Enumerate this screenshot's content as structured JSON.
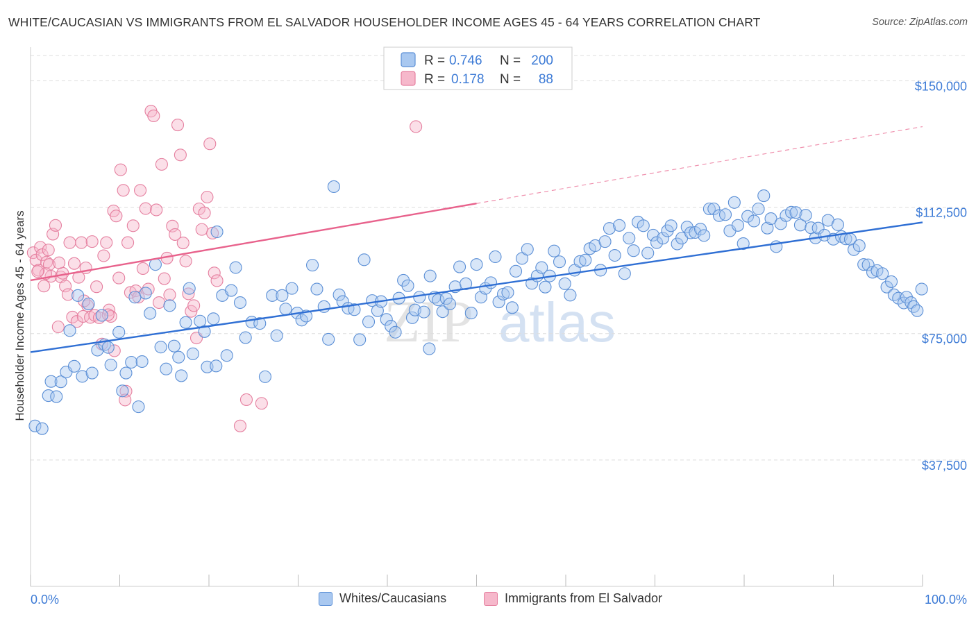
{
  "title": "WHITE/CAUCASIAN VS IMMIGRANTS FROM EL SALVADOR HOUSEHOLDER INCOME AGES 45 - 64 YEARS CORRELATION CHART",
  "source": "Source: ZipAtlas.com",
  "watermark": {
    "zip": "ZIP",
    "atlas": "atlas"
  },
  "colors": {
    "blue_fill": "#a9c8f0",
    "blue_stroke": "#5b8fd6",
    "blue_line": "#2f6fd4",
    "pink_fill": "#f6b8cb",
    "pink_stroke": "#e57f9f",
    "pink_line": "#e8628c",
    "tick_text": "#3d7bd6",
    "grid": "#dddddd"
  },
  "legend": {
    "rows": [
      {
        "r_label": "R =",
        "r_value": "0.746",
        "n_label": "N =",
        "n_value": "200"
      },
      {
        "r_label": "R =",
        "r_value": "0.178",
        "n_label": "N =",
        "n_value": "88"
      }
    ]
  },
  "bottom_legend": [
    "Whites/Caucasians",
    "Immigrants from El Salvador"
  ],
  "chart_data": {
    "type": "scatter",
    "title": "WHITE/CAUCASIAN VS IMMIGRANTS FROM EL SALVADOR HOUSEHOLDER INCOME AGES 45 - 64 YEARS CORRELATION CHART",
    "xlabel": "",
    "ylabel": "Householder Income Ages 45 - 64 years",
    "xlim": [
      0,
      100
    ],
    "ylim": [
      0,
      157500
    ],
    "x_tick_labels": [
      "0.0%",
      "100.0%"
    ],
    "y_ticks": [
      37500,
      75000,
      112500,
      150000
    ],
    "y_tick_labels": [
      "$37,500",
      "$75,000",
      "$112,500",
      "$150,000"
    ],
    "grid": "horizontal dashed",
    "series": [
      {
        "name": "Whites/Caucasians",
        "color": "#a9c8f0",
        "r": 0.746,
        "n": 200,
        "trend": {
          "x": [
            0,
            100
          ],
          "y": [
            69500,
            108000
          ]
        },
        "points": [
          [
            0.5,
            47600
          ],
          [
            1.3,
            46800
          ],
          [
            2.0,
            56600
          ],
          [
            2.3,
            60800
          ],
          [
            2.9,
            56300
          ],
          [
            3.4,
            60700
          ],
          [
            4.0,
            63600
          ],
          [
            4.4,
            75900
          ],
          [
            4.9,
            65300
          ],
          [
            5.3,
            86300
          ],
          [
            5.8,
            62300
          ],
          [
            6.5,
            83800
          ],
          [
            6.9,
            63300
          ],
          [
            7.5,
            70100
          ],
          [
            8.0,
            80400
          ],
          [
            8.3,
            71700
          ],
          [
            8.7,
            70900
          ],
          [
            9.0,
            65700
          ],
          [
            9.9,
            75400
          ],
          [
            10.3,
            58000
          ],
          [
            10.7,
            63300
          ],
          [
            11.3,
            66500
          ],
          [
            11.7,
            85800
          ],
          [
            12.1,
            53300
          ],
          [
            12.5,
            66700
          ],
          [
            12.9,
            87000
          ],
          [
            13.4,
            81000
          ],
          [
            14.0,
            95500
          ],
          [
            14.6,
            71000
          ],
          [
            15.2,
            64500
          ],
          [
            15.6,
            83300
          ],
          [
            16.1,
            71300
          ],
          [
            16.6,
            68000
          ],
          [
            17.4,
            78300
          ],
          [
            17.8,
            88400
          ],
          [
            18.2,
            69000
          ],
          [
            19.0,
            78700
          ],
          [
            19.5,
            75600
          ],
          [
            19.8,
            65100
          ],
          [
            20.5,
            79400
          ],
          [
            20.9,
            105200
          ],
          [
            21.5,
            86300
          ],
          [
            22.0,
            68500
          ],
          [
            22.5,
            87800
          ],
          [
            23.0,
            94600
          ],
          [
            23.5,
            84200
          ],
          [
            24.1,
            73800
          ],
          [
            24.8,
            78400
          ],
          [
            25.7,
            78000
          ],
          [
            26.3,
            62200
          ],
          [
            27.1,
            86300
          ],
          [
            27.6,
            74400
          ],
          [
            28.2,
            86300
          ],
          [
            28.6,
            82300
          ],
          [
            29.3,
            88400
          ],
          [
            29.9,
            81100
          ],
          [
            30.4,
            79000
          ],
          [
            30.9,
            80200
          ],
          [
            31.6,
            95300
          ],
          [
            32.1,
            88200
          ],
          [
            32.9,
            83000
          ],
          [
            33.4,
            73300
          ],
          [
            34.0,
            118600
          ],
          [
            34.6,
            86500
          ],
          [
            35.0,
            84500
          ],
          [
            35.6,
            82500
          ],
          [
            36.3,
            82100
          ],
          [
            36.9,
            73200
          ],
          [
            37.4,
            96900
          ],
          [
            37.9,
            78500
          ],
          [
            38.3,
            84800
          ],
          [
            38.9,
            81800
          ],
          [
            39.3,
            84500
          ],
          [
            39.9,
            79200
          ],
          [
            40.4,
            77200
          ],
          [
            40.9,
            75400
          ],
          [
            41.3,
            85500
          ],
          [
            41.8,
            90800
          ],
          [
            42.3,
            89200
          ],
          [
            42.8,
            79700
          ],
          [
            43.1,
            82000
          ],
          [
            43.6,
            85800
          ],
          [
            44.1,
            81400
          ],
          [
            44.8,
            92100
          ],
          [
            45.3,
            85800
          ],
          [
            45.7,
            85000
          ],
          [
            46.2,
            81500
          ],
          [
            46.6,
            85400
          ],
          [
            47.0,
            83800
          ],
          [
            47.6,
            88900
          ],
          [
            48.1,
            94800
          ],
          [
            48.8,
            89800
          ],
          [
            49.4,
            81100
          ],
          [
            50.0,
            95500
          ],
          [
            50.5,
            85800
          ],
          [
            51.0,
            88400
          ],
          [
            51.6,
            90100
          ],
          [
            52.1,
            97800
          ],
          [
            52.5,
            84400
          ],
          [
            53.0,
            86700
          ],
          [
            53.5,
            87200
          ],
          [
            54.0,
            82700
          ],
          [
            54.4,
            93500
          ],
          [
            55.1,
            97300
          ],
          [
            55.7,
            100000
          ],
          [
            56.2,
            89900
          ],
          [
            56.8,
            92100
          ],
          [
            57.3,
            94600
          ],
          [
            57.7,
            88800
          ],
          [
            58.2,
            92100
          ],
          [
            58.7,
            99500
          ],
          [
            59.3,
            96300
          ],
          [
            59.9,
            89800
          ],
          [
            60.5,
            86400
          ],
          [
            61.0,
            93800
          ],
          [
            61.6,
            96400
          ],
          [
            62.2,
            96800
          ],
          [
            62.7,
            100200
          ],
          [
            63.3,
            101100
          ],
          [
            63.9,
            93800
          ],
          [
            64.4,
            102300
          ],
          [
            64.9,
            106200
          ],
          [
            65.5,
            98200
          ],
          [
            66.0,
            107100
          ],
          [
            66.6,
            92800
          ],
          [
            67.1,
            103300
          ],
          [
            67.6,
            99600
          ],
          [
            68.1,
            108100
          ],
          [
            68.7,
            107000
          ],
          [
            69.2,
            98900
          ],
          [
            69.8,
            104200
          ],
          [
            70.2,
            102000
          ],
          [
            70.9,
            103300
          ],
          [
            71.4,
            105500
          ],
          [
            71.8,
            107000
          ],
          [
            72.5,
            101600
          ],
          [
            73.0,
            103300
          ],
          [
            73.6,
            106600
          ],
          [
            74.0,
            104900
          ],
          [
            74.5,
            105000
          ],
          [
            75.1,
            106000
          ],
          [
            75.5,
            104100
          ],
          [
            76.1,
            112000
          ],
          [
            76.6,
            112000
          ],
          [
            77.2,
            110000
          ],
          [
            77.9,
            110300
          ],
          [
            78.4,
            105500
          ],
          [
            78.9,
            113900
          ],
          [
            79.3,
            107100
          ],
          [
            79.9,
            101700
          ],
          [
            80.4,
            109800
          ],
          [
            81.1,
            108400
          ],
          [
            81.6,
            112000
          ],
          [
            82.2,
            115900
          ],
          [
            82.6,
            106300
          ],
          [
            83.0,
            109100
          ],
          [
            83.6,
            100800
          ],
          [
            84.1,
            107600
          ],
          [
            84.7,
            110000
          ],
          [
            85.3,
            111000
          ],
          [
            85.8,
            110900
          ],
          [
            86.3,
            107200
          ],
          [
            86.9,
            110100
          ],
          [
            87.5,
            106400
          ],
          [
            88.0,
            103400
          ],
          [
            88.3,
            106300
          ],
          [
            89.0,
            104200
          ],
          [
            89.4,
            108600
          ],
          [
            90.0,
            103000
          ],
          [
            90.5,
            107300
          ],
          [
            90.9,
            103800
          ],
          [
            91.4,
            103100
          ],
          [
            91.9,
            103000
          ],
          [
            92.3,
            99900
          ],
          [
            92.9,
            101100
          ],
          [
            93.4,
            95500
          ],
          [
            93.9,
            95400
          ],
          [
            94.4,
            93200
          ],
          [
            94.9,
            93700
          ],
          [
            95.5,
            92800
          ],
          [
            96.0,
            88800
          ],
          [
            96.5,
            90400
          ],
          [
            96.8,
            86500
          ],
          [
            97.3,
            85500
          ],
          [
            97.9,
            84100
          ],
          [
            98.2,
            85800
          ],
          [
            98.7,
            84200
          ],
          [
            99.0,
            83000
          ],
          [
            99.4,
            81800
          ],
          [
            99.9,
            88200
          ],
          [
            20.8,
            65400
          ],
          [
            44.7,
            70500
          ],
          [
            16.9,
            62500
          ]
        ]
      },
      {
        "name": "Immigrants from El Salvador",
        "color": "#f6b8cb",
        "r": 0.178,
        "n": 88,
        "trend": {
          "x": [
            0,
            50
          ],
          "y": [
            90800,
            113600
          ]
        },
        "trend_extension": {
          "x": [
            50,
            100
          ],
          "y": [
            113600,
            136400
          ]
        },
        "points": [
          [
            0.3,
            99000
          ],
          [
            0.6,
            96800
          ],
          [
            0.9,
            93800
          ],
          [
            1.1,
            100600
          ],
          [
            1.3,
            98400
          ],
          [
            1.5,
            89100
          ],
          [
            1.8,
            96200
          ],
          [
            2.1,
            95500
          ],
          [
            2.3,
            92000
          ],
          [
            2.5,
            104500
          ],
          [
            2.8,
            107100
          ],
          [
            3.1,
            77000
          ],
          [
            3.4,
            91800
          ],
          [
            3.6,
            92900
          ],
          [
            3.9,
            89100
          ],
          [
            4.2,
            86600
          ],
          [
            4.4,
            102000
          ],
          [
            4.7,
            79900
          ],
          [
            4.9,
            95800
          ],
          [
            5.2,
            78600
          ],
          [
            5.4,
            91700
          ],
          [
            5.7,
            102000
          ],
          [
            5.9,
            80100
          ],
          [
            6.2,
            94500
          ],
          [
            6.4,
            83300
          ],
          [
            6.7,
            79800
          ],
          [
            6.9,
            102300
          ],
          [
            7.2,
            80400
          ],
          [
            7.4,
            88900
          ],
          [
            7.7,
            79700
          ],
          [
            8.0,
            71900
          ],
          [
            8.2,
            98100
          ],
          [
            8.5,
            102000
          ],
          [
            8.8,
            82000
          ],
          [
            9.0,
            80100
          ],
          [
            9.3,
            111400
          ],
          [
            9.6,
            109900
          ],
          [
            9.9,
            91500
          ],
          [
            10.1,
            123600
          ],
          [
            10.4,
            117500
          ],
          [
            10.7,
            57900
          ],
          [
            10.9,
            102000
          ],
          [
            11.2,
            87200
          ],
          [
            11.5,
            107000
          ],
          [
            11.8,
            87700
          ],
          [
            12.1,
            85800
          ],
          [
            12.3,
            117500
          ],
          [
            12.6,
            94300
          ],
          [
            12.9,
            112100
          ],
          [
            13.2,
            88200
          ],
          [
            13.5,
            141000
          ],
          [
            13.8,
            139600
          ],
          [
            14.1,
            111700
          ],
          [
            14.4,
            84200
          ],
          [
            14.7,
            125200
          ],
          [
            15.0,
            91300
          ],
          [
            15.3,
            97400
          ],
          [
            15.6,
            86500
          ],
          [
            15.9,
            106900
          ],
          [
            16.2,
            104400
          ],
          [
            16.5,
            136900
          ],
          [
            16.8,
            128000
          ],
          [
            17.1,
            101900
          ],
          [
            17.4,
            96500
          ],
          [
            17.7,
            86800
          ],
          [
            18.0,
            81600
          ],
          [
            18.3,
            83300
          ],
          [
            18.6,
            73700
          ],
          [
            18.9,
            112000
          ],
          [
            19.2,
            105900
          ],
          [
            19.5,
            110800
          ],
          [
            19.8,
            115500
          ],
          [
            20.1,
            131300
          ],
          [
            20.4,
            104800
          ],
          [
            20.6,
            93000
          ],
          [
            20.9,
            90700
          ],
          [
            23.5,
            47600
          ],
          [
            24.2,
            55400
          ],
          [
            25.9,
            54300
          ],
          [
            43.2,
            136400
          ],
          [
            6.0,
            84700
          ],
          [
            9.4,
            69900
          ],
          [
            3.2,
            96000
          ],
          [
            1.7,
            92800
          ],
          [
            10.6,
            55300
          ],
          [
            8.7,
            80600
          ],
          [
            0.8,
            93400
          ],
          [
            2.0,
            99800
          ]
        ]
      }
    ]
  }
}
